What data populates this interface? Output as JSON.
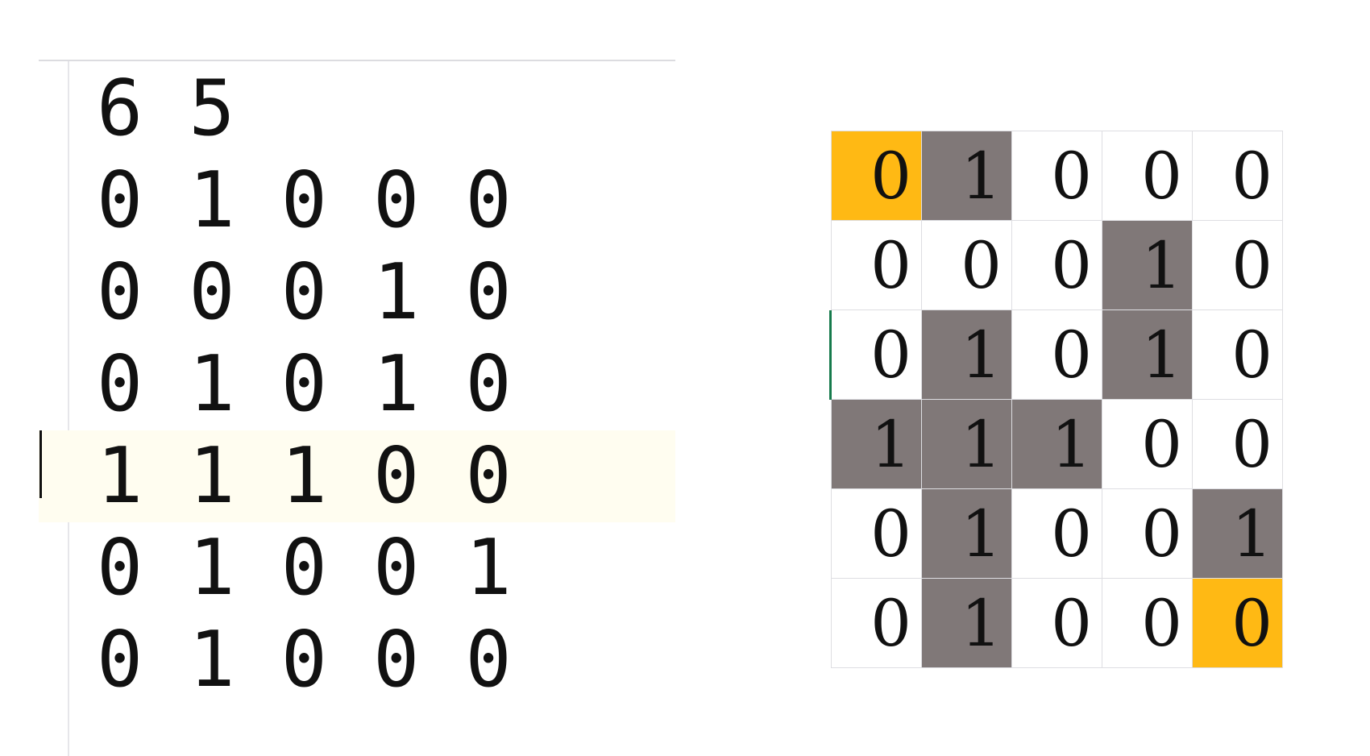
{
  "editor": {
    "lines": [
      "6 5",
      "0 1 0 0 0",
      "0 0 0 1 0",
      "0 1 0 1 0",
      "1 1 1 0 0",
      "0 1 0 0 1",
      "0 1 0 0 0"
    ],
    "active_line": 4
  },
  "grid": {
    "rows": [
      [
        "0",
        "1",
        "0",
        "0",
        "0"
      ],
      [
        "0",
        "0",
        "0",
        "1",
        "0"
      ],
      [
        "0",
        "1",
        "0",
        "1",
        "0"
      ],
      [
        "1",
        "1",
        "1",
        "0",
        "0"
      ],
      [
        "0",
        "1",
        "0",
        "0",
        "1"
      ],
      [
        "0",
        "1",
        "0",
        "0",
        "0"
      ]
    ],
    "highlighted_cells": [
      [
        0,
        0
      ],
      [
        5,
        4
      ]
    ],
    "colors": {
      "wall": "#807878",
      "endpoint": "#ffb914",
      "selection": "#167a4c"
    }
  }
}
